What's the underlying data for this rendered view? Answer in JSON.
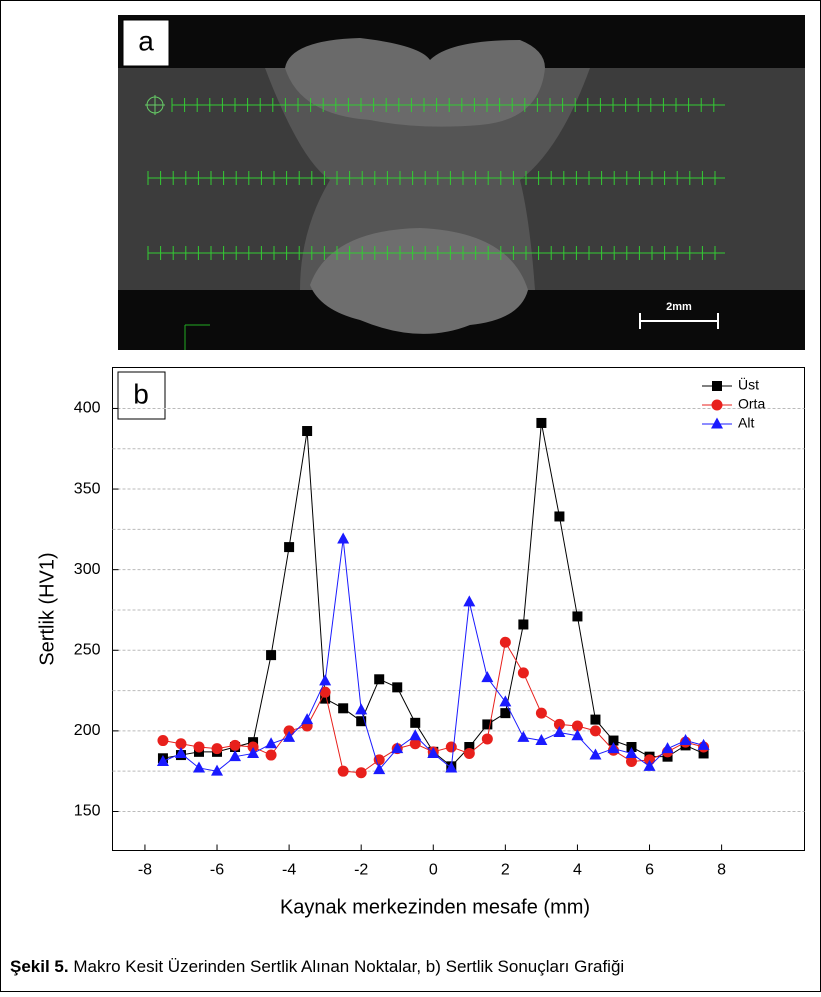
{
  "panel_a": {
    "label": "a",
    "scale_bar": "2mm"
  },
  "chart_data": {
    "type": "line",
    "panel_label": "b",
    "x_label": "Kaynak merkezinden mesafe (mm)",
    "y_label": "Sertlik (HV1)",
    "x": [
      -7.5,
      -7,
      -6.5,
      -6,
      -5.5,
      -5,
      -4.5,
      -4,
      -3.5,
      -3,
      -2.5,
      -2,
      -1.5,
      -1,
      -0.5,
      0,
      0.5,
      1,
      1.5,
      2,
      2.5,
      3,
      3.5,
      4,
      4.5,
      5,
      5.5,
      6,
      6.5,
      7,
      7.5
    ],
    "series": [
      {
        "name": "Üst",
        "color": "#000000",
        "marker": "square",
        "values": [
          183,
          185,
          187,
          187,
          190,
          193,
          247,
          314,
          386,
          220,
          214,
          206,
          232,
          227,
          205,
          187,
          178,
          190,
          204,
          211,
          266,
          391,
          333,
          271,
          207,
          194,
          190,
          184,
          184,
          191,
          186
        ]
      },
      {
        "name": "Orta",
        "color": "#e8201c",
        "marker": "circle",
        "values": [
          194,
          192,
          190,
          189,
          191,
          190,
          185,
          200,
          203,
          224,
          175,
          174,
          182,
          189,
          192,
          187,
          190,
          186,
          195,
          255,
          236,
          211,
          204,
          203,
          200,
          188,
          181,
          182,
          187,
          193,
          190
        ]
      },
      {
        "name": "Alt",
        "color": "#1a1aff",
        "marker": "triangle",
        "values": [
          181,
          186,
          177,
          175,
          184,
          186,
          192,
          196,
          207,
          231,
          319,
          213,
          176,
          189,
          197,
          186,
          177,
          280,
          233,
          218,
          196,
          194,
          199,
          197,
          185,
          189,
          186,
          178,
          189,
          194,
          191
        ]
      }
    ],
    "xlim": [
      -8.9,
      10.3
    ],
    "ylim": [
      125.8,
      425.4
    ],
    "xticks": [
      -8,
      -6,
      -4,
      -2,
      0,
      2,
      4,
      6,
      8
    ],
    "yticks": [
      150,
      200,
      250,
      300,
      350,
      400
    ],
    "y_grid": [
      150,
      175,
      200,
      225,
      250,
      275,
      300,
      325,
      350,
      375,
      400
    ],
    "grid": true,
    "legend": "top-right"
  },
  "caption": {
    "bold": "Şekil 5.",
    "text": " Makro Kesit Üzerinden Sertlik Alınan Noktalar, b) Sertlik Sonuçları Grafiği"
  }
}
